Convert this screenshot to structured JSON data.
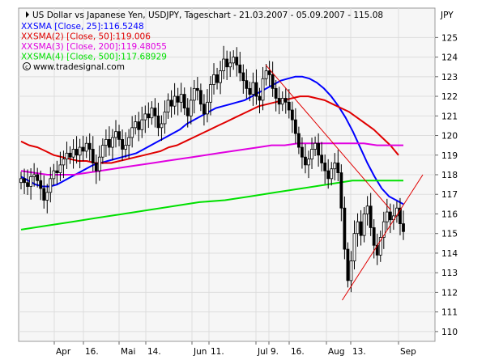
{
  "chart_data": {
    "type": "candlestick",
    "title": "US Dollar vs Japanese Yen, USDJPY, Tageschart - 21.03.2007 - 05.09.2007 - 115.08",
    "currency_label": "JPY",
    "source": "www.tradesignal.com",
    "ylim": [
      109.5,
      126.5
    ],
    "y_ticks": [
      110,
      111,
      112,
      113,
      114,
      115,
      116,
      117,
      118,
      119,
      120,
      121,
      122,
      123,
      124,
      125
    ],
    "x_tick_labels": [
      "Apr",
      "16.",
      "Mai",
      "14.",
      "Jun",
      "11.",
      "Jul",
      "9.",
      "16.",
      "Aug",
      "13.",
      "Sep"
    ],
    "grid": true,
    "legend_position": "top-left",
    "colors": {
      "plot_background": "#f6f6f6",
      "grid": "#dddddd",
      "candle": "#000000",
      "sma25": "#0000ff",
      "sma50": "#e00000",
      "sma200": "#e000e0",
      "sma500": "#00e000",
      "trendline": "#e00000",
      "text": "#000000"
    },
    "legend": [
      {
        "prefix": "XX",
        "label": "SMA [Close, 25]:116.5248",
        "color": "#0000ff"
      },
      {
        "prefix": "XX",
        "label": "SMA(2) [Close, 50]:119.006",
        "color": "#e00000"
      },
      {
        "prefix": "XX",
        "label": "SMA(3) [Close, 200]:119.48055",
        "color": "#e000e0"
      },
      {
        "prefix": "XX",
        "label": "SMA(4) [Close, 500]:117.68929",
        "color": "#00e000"
      }
    ],
    "closes": [
      117.8,
      117.6,
      117.4,
      117.9,
      118.0,
      117.7,
      117.3,
      116.7,
      117.1,
      117.8,
      118.2,
      118.1,
      118.5,
      118.8,
      119.1,
      118.9,
      119.3,
      119.0,
      119.4,
      119.2,
      119.6,
      119.3,
      118.6,
      118.2,
      118.9,
      119.5,
      119.8,
      119.4,
      119.9,
      120.2,
      119.8,
      119.3,
      119.5,
      119.9,
      120.4,
      120.7,
      120.3,
      120.8,
      121.1,
      120.9,
      121.4,
      121.0,
      120.4,
      120.6,
      121.2,
      121.8,
      121.5,
      122.0,
      121.7,
      122.1,
      121.4,
      121.0,
      121.8,
      122.4,
      122.3,
      121.6,
      121.1,
      121.7,
      122.6,
      123.1,
      122.7,
      123.3,
      123.9,
      123.5,
      123.7,
      124.0,
      123.6,
      123.2,
      122.8,
      122.4,
      122.1,
      122.7,
      122.0,
      121.8,
      122.9,
      123.3,
      123.1,
      122.4,
      121.9,
      121.6,
      121.9,
      121.7,
      121.3,
      120.8,
      120.1,
      119.4,
      118.9,
      118.5,
      118.8,
      119.3,
      119.6,
      119.0,
      118.6,
      118.2,
      117.8,
      118.3,
      118.6,
      118.1,
      116.3,
      114.2,
      112.6,
      113.6,
      115.0,
      115.6,
      114.9,
      116.0,
      116.4,
      115.3,
      114.4,
      113.9,
      114.8,
      115.6,
      116.1,
      115.7,
      115.9,
      116.3,
      115.5,
      115.1
    ],
    "series": [
      {
        "name": "SMA [Close, 25]",
        "values": [
          117.9,
          117.7,
          117.5,
          117.4,
          117.4,
          117.5,
          117.7,
          117.9,
          118.1,
          118.3,
          118.5,
          118.6,
          118.7,
          118.8,
          118.9,
          119.0,
          119.1,
          119.3,
          119.5,
          119.7,
          119.9,
          120.1,
          120.3,
          120.6,
          120.8,
          121.0,
          121.2,
          121.4,
          121.5,
          121.6,
          121.7,
          121.8,
          122.0,
          122.2,
          122.4,
          122.6,
          122.8,
          122.9,
          123.0,
          123.0,
          122.9,
          122.7,
          122.4,
          122.0,
          121.5,
          120.9,
          120.2,
          119.4,
          118.6,
          117.9,
          117.3,
          116.9,
          116.7,
          116.5
        ]
      },
      {
        "name": "SMA(2) [Close, 50]",
        "values": [
          119.7,
          119.5,
          119.4,
          119.2,
          119.0,
          118.9,
          118.8,
          118.7,
          118.7,
          118.6,
          118.6,
          118.6,
          118.7,
          118.8,
          118.9,
          119.0,
          119.1,
          119.2,
          119.4,
          119.5,
          119.7,
          119.9,
          120.1,
          120.3,
          120.5,
          120.7,
          120.9,
          121.1,
          121.3,
          121.5,
          121.6,
          121.7,
          121.8,
          121.9,
          122.0,
          122.0,
          121.9,
          121.8,
          121.6,
          121.4,
          121.2,
          120.9,
          120.6,
          120.3,
          119.9,
          119.5,
          119.0
        ]
      },
      {
        "name": "SMA(3) [Close, 200]",
        "values": [
          118.2,
          118.1,
          118.0,
          118.0,
          118.0,
          118.1,
          118.2,
          118.3,
          118.4,
          118.5,
          118.6,
          118.7,
          118.8,
          118.9,
          119.0,
          119.1,
          119.2,
          119.3,
          119.4,
          119.5,
          119.5,
          119.6,
          119.6,
          119.6,
          119.6,
          119.6,
          119.6,
          119.5,
          119.5,
          119.5
        ]
      },
      {
        "name": "SMA(4) [Close, 500]",
        "values": [
          115.2,
          115.4,
          115.6,
          115.8,
          116.0,
          116.2,
          116.4,
          116.6,
          116.7,
          116.9,
          117.1,
          117.3,
          117.5,
          117.7,
          117.7,
          117.7
        ]
      }
    ],
    "trendlines": [
      {
        "from": [
          0.64,
          123.6
        ],
        "to": [
          0.95,
          116.2
        ]
      },
      {
        "from": [
          0.84,
          111.6
        ],
        "to": [
          1.0,
          118.0
        ]
      }
    ]
  }
}
